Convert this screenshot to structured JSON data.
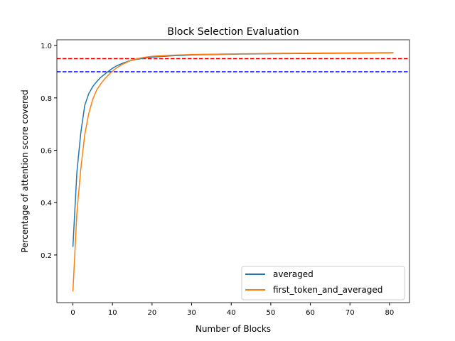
{
  "chart_data": {
    "type": "line",
    "title": "Block Selection Evaluation",
    "xlabel": "Number of Blocks",
    "ylabel": "Percentage of attention score covered",
    "xlim": [
      -4.05,
      85.05
    ],
    "ylim": [
      0.018,
      1.022
    ],
    "xticks": [
      0,
      10,
      20,
      30,
      40,
      50,
      60,
      70,
      80
    ],
    "yticks": [
      0.2,
      0.4,
      0.6,
      0.8,
      1.0
    ],
    "ytick_labels": [
      "0.2",
      "0.4",
      "0.6",
      "0.8",
      "1.0"
    ],
    "grid": false,
    "legend_position": "lower-right",
    "hlines": [
      {
        "y": 0.95,
        "color": "#ff0000",
        "style": "dashed"
      },
      {
        "y": 0.9,
        "color": "#0000ff",
        "style": "dashed"
      }
    ],
    "series": [
      {
        "name": "averaged",
        "color": "#1f77b4",
        "anchors_x": [
          0,
          1,
          2,
          3,
          4,
          5,
          6,
          7,
          8,
          9,
          10,
          11,
          12,
          13,
          14,
          15,
          16,
          18,
          20,
          25,
          30,
          40,
          50,
          60,
          70,
          81
        ],
        "anchors_y": [
          0.231,
          0.515,
          0.667,
          0.772,
          0.816,
          0.843,
          0.862,
          0.878,
          0.89,
          0.902,
          0.913,
          0.922,
          0.929,
          0.935,
          0.94,
          0.944,
          0.947,
          0.952,
          0.956,
          0.961,
          0.964,
          0.967,
          0.969,
          0.97,
          0.971,
          0.972
        ]
      },
      {
        "name": "first_token_and_averaged",
        "color": "#ff7f0e",
        "anchors_x": [
          0,
          1,
          2,
          3,
          4,
          5,
          6,
          7,
          8,
          9,
          10,
          11,
          12,
          13,
          14,
          15,
          16,
          18,
          20,
          25,
          30,
          40,
          50,
          60,
          70,
          81
        ],
        "anchors_y": [
          0.06,
          0.36,
          0.53,
          0.66,
          0.74,
          0.794,
          0.83,
          0.853,
          0.872,
          0.888,
          0.902,
          0.914,
          0.924,
          0.932,
          0.939,
          0.944,
          0.949,
          0.955,
          0.959,
          0.963,
          0.966,
          0.968,
          0.97,
          0.971,
          0.972,
          0.973
        ]
      }
    ]
  }
}
